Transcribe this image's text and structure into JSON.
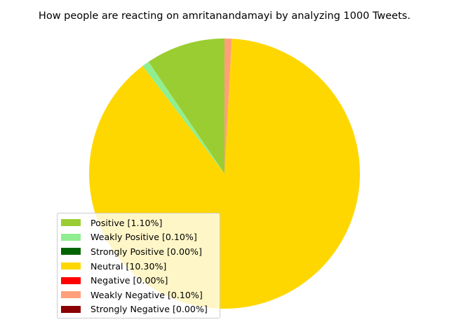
{
  "chart_data": {
    "type": "pie",
    "title": "How people are reacting on amritanandamayi by analyzing 1000 Tweets.",
    "slices": [
      {
        "label": "Positive [1.10%]",
        "value": 11.0,
        "color": "#9acd32"
      },
      {
        "label": "Weakly Positive [0.10%]",
        "value": 1.0,
        "color": "#90ee90"
      },
      {
        "label": "Strongly Positive [0.00%]",
        "value": 0.0,
        "color": "#006400"
      },
      {
        "label": "Neutral [10.30%]",
        "value": 103.0,
        "color": "#ffd700"
      },
      {
        "label": "Negative [0.00%]",
        "value": 0.0,
        "color": "#ff0000"
      },
      {
        "label": "Weakly Negative [0.10%]",
        "value": 1.0,
        "color": "#ffa07a"
      },
      {
        "label": "Strongly Negative [0.00%]",
        "value": 0.0,
        "color": "#8b0000"
      }
    ],
    "start_angle_deg": 90,
    "direction": "counterclockwise",
    "legend": "lower-left"
  }
}
